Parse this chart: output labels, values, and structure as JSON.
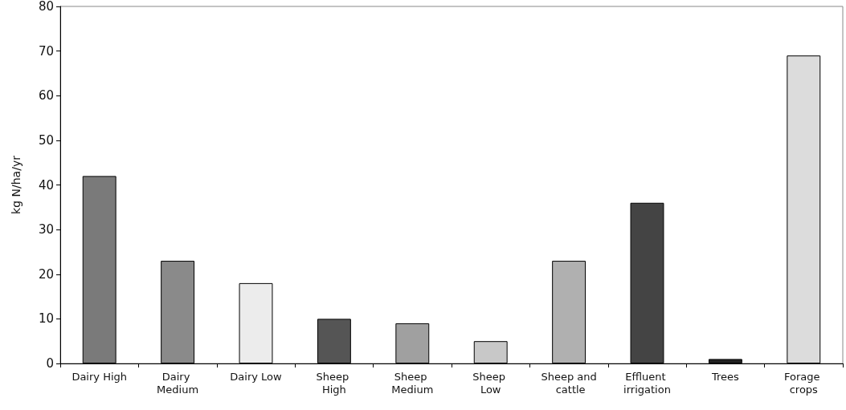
{
  "chart_data": {
    "type": "bar",
    "ylabel": "kg N/ha/yr",
    "categories": [
      "Dairy High",
      "Dairy Medium",
      "Dairy Low",
      "Sheep High",
      "Sheep Medium",
      "Sheep Low",
      "Sheep and cattle",
      "Effluent irrigation",
      "Trees",
      "Forage crops"
    ],
    "values": [
      42,
      23,
      18,
      10,
      9,
      5,
      23,
      36,
      1,
      69
    ],
    "colors": [
      "#7a7a7a",
      "#8a8a8a",
      "#ececec",
      "#555555",
      "#a0a0a0",
      "#c8c8c8",
      "#b0b0b0",
      "#444444",
      "#222222",
      "#dcdcdc"
    ],
    "ylim": [
      0,
      80
    ],
    "yticks": [
      0,
      10,
      20,
      30,
      40,
      50,
      60,
      70,
      80
    ],
    "grid": false
  }
}
